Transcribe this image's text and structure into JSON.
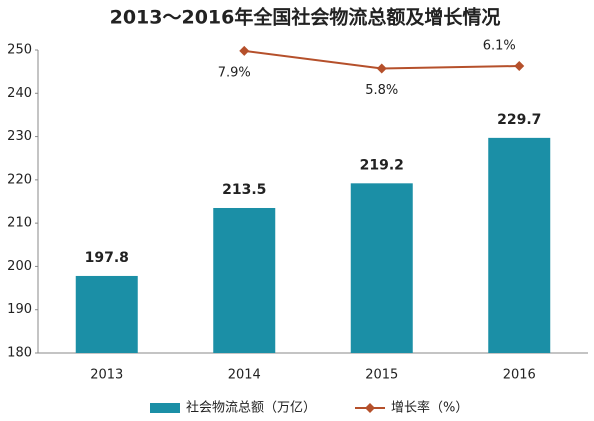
{
  "chart_data": {
    "type": "bar",
    "title": "2013～2016年全国社会物流总额及增长情况",
    "categories": [
      "2013",
      "2014",
      "2015",
      "2016"
    ],
    "series": [
      {
        "name": "社会物流总额（万亿）",
        "type": "bar",
        "color": "#1b8fa6",
        "values": [
          197.8,
          213.5,
          219.2,
          229.7
        ]
      },
      {
        "name": "增长率（%）",
        "type": "line",
        "axis": "y2",
        "color": "#b5502b",
        "values": [
          null,
          7.9,
          5.8,
          6.1
        ],
        "value_labels": [
          null,
          "7.9%",
          "5.8%",
          "6.1%"
        ]
      }
    ],
    "ylim": [
      180,
      250
    ],
    "yticks": [
      180,
      190,
      200,
      210,
      220,
      230,
      240,
      250
    ],
    "y2lim": [
      -28,
      8
    ],
    "grid": false,
    "legend": "bottom"
  }
}
